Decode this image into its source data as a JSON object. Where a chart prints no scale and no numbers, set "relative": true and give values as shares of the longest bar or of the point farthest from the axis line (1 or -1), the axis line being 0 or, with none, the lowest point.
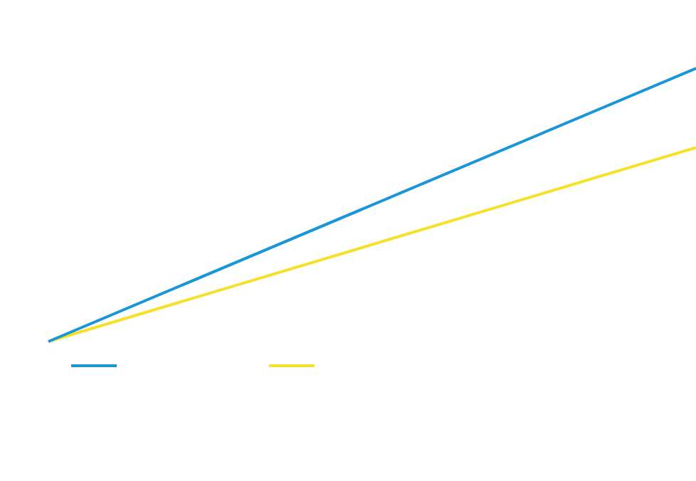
{
  "chart_data": {
    "type": "line",
    "relative": true,
    "categories": [
      null,
      null
    ],
    "series": [
      {
        "color": "#1a96d8",
        "values": [
          0,
          1
        ]
      },
      {
        "color": "#f5e12a",
        "values": [
          0,
          0.71
        ]
      }
    ],
    "marker": "none",
    "line_style": "solid"
  }
}
